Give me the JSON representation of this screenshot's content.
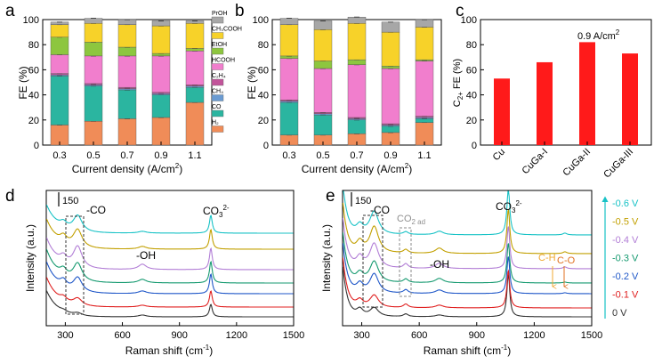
{
  "fe_colors": {
    "H2": "#f08c58",
    "CO": "#2bb5a0",
    "CH4": "#6a9bd2",
    "C2H4": "#c2549a",
    "HCOOH": "#f17ecd",
    "EtOH": "#8dc63f",
    "CH3COOH": "#f7d229",
    "PrOH": "#a7a7a7"
  },
  "chart_data": [
    {
      "panel": "a",
      "type": "stacked_bar",
      "xlabel": "Current density (A/cm",
      "xlabel_sup": "2",
      "xlabel_close": ")",
      "ylabel": "FE (%)",
      "ylim": [
        0,
        100
      ],
      "yticks": [
        "0",
        "20",
        "40",
        "60",
        "80",
        "100"
      ],
      "categories": [
        "0.3",
        "0.5",
        "0.7",
        "0.9",
        "1.1"
      ],
      "series": [
        {
          "name": "H2",
          "values": [
            16,
            19,
            21,
            22,
            34
          ]
        },
        {
          "name": "CO",
          "values": [
            39,
            28,
            23,
            18,
            12
          ]
        },
        {
          "name": "CH4",
          "values": [
            1,
            1,
            1,
            1,
            1
          ]
        },
        {
          "name": "C2H4",
          "values": [
            1,
            1,
            1,
            1,
            1
          ]
        },
        {
          "name": "HCOOH",
          "values": [
            15,
            22,
            25,
            29,
            27
          ]
        },
        {
          "name": "EtOH",
          "values": [
            14,
            11,
            7,
            2,
            2
          ]
        },
        {
          "name": "CH3COOH",
          "values": [
            10,
            15,
            18,
            22,
            20
          ]
        },
        {
          "name": "PrOH",
          "values": [
            2,
            4,
            4,
            4,
            2
          ]
        }
      ],
      "legend": [
        {
          "key": "PrOH",
          "label": "PrOH"
        },
        {
          "key": "CH3COOH",
          "label": "CH₃COOH"
        },
        {
          "key": "EtOH",
          "label": "EtOH"
        },
        {
          "key": "HCOOH",
          "label": "HCOOH"
        },
        {
          "key": "C2H4",
          "label": "C₂H₄"
        },
        {
          "key": "CH4",
          "label": "CH₄"
        },
        {
          "key": "CO",
          "label": "CO"
        },
        {
          "key": "H2",
          "label": "H₂"
        }
      ]
    },
    {
      "panel": "b",
      "type": "stacked_bar",
      "xlabel": "Current density (A/cm",
      "xlabel_sup": "2",
      "xlabel_close": ")",
      "ylabel": "FE (%)",
      "ylim": [
        0,
        100
      ],
      "yticks": [
        "0",
        "20",
        "40",
        "60",
        "80",
        "100"
      ],
      "categories": [
        "0.3",
        "0.5",
        "0.7",
        "0.9",
        "1.1"
      ],
      "series": [
        {
          "name": "H2",
          "values": [
            8,
            8,
            9,
            10,
            18
          ]
        },
        {
          "name": "CO",
          "values": [
            26,
            16,
            11,
            5,
            3
          ]
        },
        {
          "name": "CH4",
          "values": [
            1,
            1,
            1,
            1,
            1
          ]
        },
        {
          "name": "C2H4",
          "values": [
            1,
            1,
            1,
            1,
            1
          ]
        },
        {
          "name": "HCOOH",
          "values": [
            33,
            35,
            42,
            44,
            44
          ]
        },
        {
          "name": "EtOH",
          "values": [
            2,
            6,
            4,
            2,
            1
          ]
        },
        {
          "name": "CH3COOH",
          "values": [
            25,
            25,
            29,
            27,
            26
          ]
        },
        {
          "name": "PrOH",
          "values": [
            5,
            7,
            5,
            8,
            6
          ]
        }
      ]
    },
    {
      "panel": "c",
      "type": "bar",
      "ylabel_main": "C",
      "ylabel_sub": "2+",
      "ylabel_rest": " FE (%)",
      "ylim": [
        0,
        100
      ],
      "yticks": [
        "0",
        "20",
        "40",
        "60",
        "80",
        "100"
      ],
      "categories": [
        "Cu",
        "CuGa-I",
        "CuGa-II",
        "CuGa-III"
      ],
      "values": [
        53,
        66,
        82,
        73
      ],
      "bar_color": "#ff1a1a",
      "annotation": "0.9 A/cm",
      "annotation_sup": "2"
    },
    {
      "panel": "d",
      "type": "line",
      "xlabel": "Raman shift (cm",
      "xlabel_sup": "-1",
      "xlabel_close": ")",
      "ylabel": "Intensity (a.u.)",
      "xlim": [
        200,
        1500
      ],
      "xticks": [
        "300",
        "600",
        "900",
        "1200",
        "1500"
      ],
      "scale_bar": "150",
      "annotations": [
        "-CO",
        "CO",
        "3",
        "2-",
        "-OH"
      ],
      "curve_order_bottom_to_top": [
        "0 V",
        "-0.1 V",
        "-0.2 V",
        "-0.3 V",
        "-0.4 V",
        "-0.5 V",
        "-0.6 V"
      ],
      "peaks_cm1": [
        290,
        365,
        705,
        1065
      ]
    },
    {
      "panel": "e",
      "type": "line",
      "xlabel": "Raman shift (cm",
      "xlabel_sup": "-1",
      "xlabel_close": ")",
      "ylabel": "Intensity (a.u.)",
      "xlim": [
        200,
        1500
      ],
      "xticks": [
        "300",
        "600",
        "900",
        "1200",
        "1500"
      ],
      "scale_bar": "150",
      "annotations": [
        "-CO",
        "CO",
        "2 ad",
        "-OH",
        "CO",
        "3",
        "2-",
        "C-O",
        "C-H"
      ],
      "curve_order_bottom_to_top": [
        "0 V",
        "-0.1 V",
        "-0.2 V",
        "-0.3 V",
        "-0.4 V",
        "-0.5 V",
        "-0.6 V"
      ],
      "peaks_cm1": [
        290,
        365,
        530,
        705,
        1065,
        1360
      ]
    }
  ],
  "legend_potentials": [
    {
      "label": "-0.6 V",
      "color": "#18c2c6"
    },
    {
      "label": "-0.5 V",
      "color": "#c2a000"
    },
    {
      "label": "-0.4 V",
      "color": "#b27ed6"
    },
    {
      "label": "-0.3 V",
      "color": "#169a70"
    },
    {
      "label": "-0.2 V",
      "color": "#1f57c8"
    },
    {
      "label": "-0.1 V",
      "color": "#e02020"
    },
    {
      "label": "0  V",
      "color": "#333333"
    }
  ],
  "panel_labels": [
    "a",
    "b",
    "c",
    "d",
    "e"
  ],
  "peak_label_colors": {
    "co2ad": "#8f8f8f",
    "co": "#e07020",
    "ch": "#f0a830"
  }
}
